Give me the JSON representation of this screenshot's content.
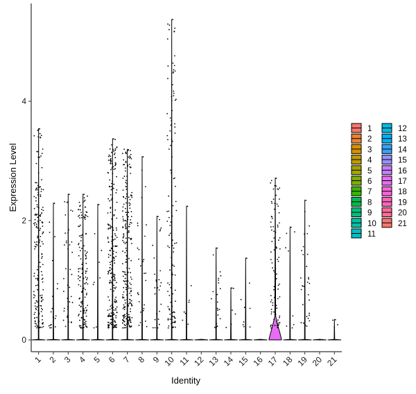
{
  "chart_data": {
    "type": "violin",
    "title": "",
    "xlabel": "Identity",
    "ylabel": "Expression Level",
    "ylim": [
      -0.1,
      5.6
    ],
    "yticks": [
      0,
      2,
      4
    ],
    "grid": false,
    "legend_position": "right",
    "categories": [
      "1",
      "2",
      "3",
      "4",
      "5",
      "6",
      "7",
      "8",
      "9",
      "10",
      "11",
      "12",
      "13",
      "14",
      "15",
      "16",
      "17",
      "18",
      "19",
      "20",
      "21"
    ],
    "colors": [
      "#F8766D",
      "#EA8331",
      "#D89000",
      "#C09B00",
      "#A3A500",
      "#7CAE00",
      "#39B600",
      "#00BB4E",
      "#00BF7D",
      "#00C1A3",
      "#00BFC4",
      "#00BAE0",
      "#00B0F6",
      "#35A2FF",
      "#9590FF",
      "#C77CFF",
      "#E76BF3",
      "#FA62DB",
      "#FF62BC",
      "#FF6A98",
      "#F8766D"
    ],
    "max_values": [
      3.55,
      2.3,
      2.45,
      2.45,
      2.28,
      3.38,
      3.2,
      3.08,
      2.08,
      5.38,
      2.25,
      0.0,
      1.55,
      0.88,
      1.38,
      0.0,
      2.72,
      1.9,
      2.35,
      0.0,
      0.35
    ],
    "point_density": [
      0.7,
      0.07,
      0.15,
      0.55,
      0.03,
      0.9,
      0.9,
      0.12,
      0.1,
      0.45,
      0.03,
      0.0,
      0.08,
      0.02,
      0.03,
      0.0,
      0.35,
      0.03,
      0.12,
      0.0,
      0.01
    ]
  }
}
